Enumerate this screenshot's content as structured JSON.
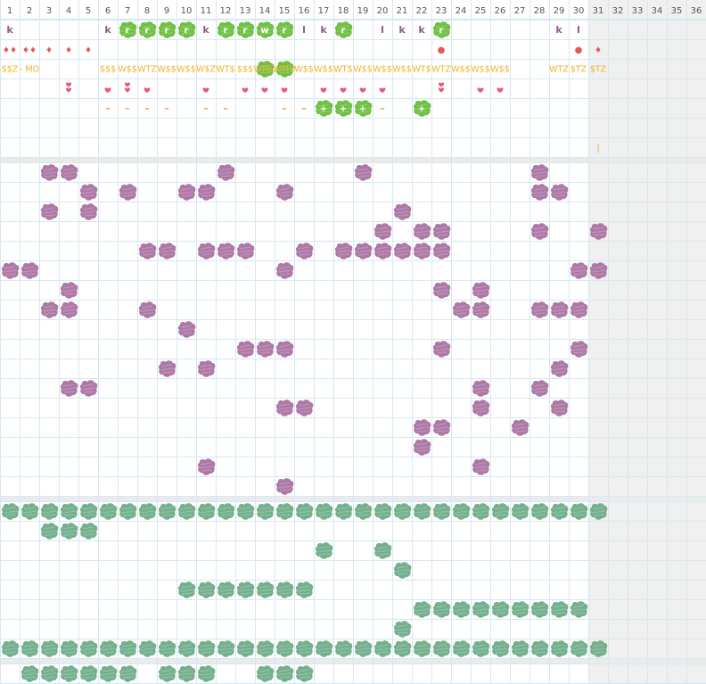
{
  "columns": [
    "1",
    "2",
    "3",
    "4",
    "5",
    "6",
    "7",
    "8",
    "9",
    "10",
    "11",
    "12",
    "13",
    "14",
    "15",
    "16",
    "17",
    "18",
    "19",
    "20",
    "21",
    "22",
    "23",
    "24",
    "25",
    "26",
    "27",
    "28",
    "29",
    "30",
    "31",
    "32",
    "33",
    "34",
    "35",
    "36"
  ],
  "colors": {
    "purple_blob": "#ae78a6",
    "green_blob": "#6fc043",
    "teal_blob": "#74b08d",
    "money": "#f0b429",
    "heart": "#e65a78",
    "drop": "#e35a5a",
    "dash": "#f2994a",
    "letter_k": "#8e5a8c",
    "grid_line": "#d6e8f2",
    "shade": "#f0f0f0"
  },
  "icons": [
    "drop-icon",
    "heart-icon",
    "plus-icon",
    "blob-icon"
  ],
  "row_letters": [
    {
      "col": 1,
      "t": "k",
      "s": 0
    },
    {
      "col": 6,
      "t": "k",
      "s": 0
    },
    {
      "col": 7,
      "t": "r",
      "s": 1
    },
    {
      "col": 8,
      "t": "r",
      "s": 1
    },
    {
      "col": 9,
      "t": "r",
      "s": 1
    },
    {
      "col": 10,
      "t": "r",
      "s": 1
    },
    {
      "col": 11,
      "t": "k",
      "s": 0
    },
    {
      "col": 12,
      "t": "r",
      "s": 1
    },
    {
      "col": 13,
      "t": "r",
      "s": 1
    },
    {
      "col": 14,
      "t": "w",
      "s": 1
    },
    {
      "col": 15,
      "t": "r",
      "s": 1
    },
    {
      "col": 16,
      "t": "l",
      "s": 0
    },
    {
      "col": 17,
      "t": "k",
      "s": 0
    },
    {
      "col": 18,
      "t": "r",
      "s": 1
    },
    {
      "col": 20,
      "t": "l",
      "s": 0
    },
    {
      "col": 21,
      "t": "k",
      "s": 0
    },
    {
      "col": 22,
      "t": "k",
      "s": 0
    },
    {
      "col": 23,
      "t": "r",
      "s": 1
    },
    {
      "col": 29,
      "t": "k",
      "s": 0
    },
    {
      "col": 30,
      "t": "l",
      "s": 0
    }
  ],
  "row_drops": [
    {
      "col": 1,
      "t": "♦♦",
      "k": "d"
    },
    {
      "col": 2,
      "t": "♦♦",
      "k": "d"
    },
    {
      "col": 3,
      "t": "♦",
      "k": "d"
    },
    {
      "col": 4,
      "t": "♦",
      "k": "d"
    },
    {
      "col": 5,
      "t": "♦",
      "k": "d"
    },
    {
      "col": 23,
      "t": "●",
      "k": "c"
    },
    {
      "col": 30,
      "t": "●",
      "k": "c"
    },
    {
      "col": 31,
      "t": "♦",
      "k": "d"
    }
  ],
  "row_money": [
    {
      "col": 1,
      "t": "$$Z",
      "b": 0
    },
    {
      "col": 2,
      "t": "- MO",
      "b": 0
    },
    {
      "col": 6,
      "t": "$$$",
      "b": 0
    },
    {
      "col": 7,
      "t": "W$$",
      "b": 0
    },
    {
      "col": 8,
      "t": "WTZ",
      "b": 0
    },
    {
      "col": 9,
      "t": "W$$",
      "b": 0
    },
    {
      "col": 10,
      "t": "W$$",
      "b": 0
    },
    {
      "col": 11,
      "t": "W$Z",
      "b": 0
    },
    {
      "col": 12,
      "t": "WT$",
      "b": 0
    },
    {
      "col": 13,
      "t": "$$$",
      "b": 0
    },
    {
      "col": 14,
      "t": "WMO",
      "b": 1
    },
    {
      "col": 15,
      "t": "WMO",
      "b": 1
    },
    {
      "col": 16,
      "t": "W$$",
      "b": 0
    },
    {
      "col": 17,
      "t": "W$$",
      "b": 0
    },
    {
      "col": 18,
      "t": "WT$",
      "b": 0
    },
    {
      "col": 19,
      "t": "W$$",
      "b": 0
    },
    {
      "col": 20,
      "t": "W$$",
      "b": 0
    },
    {
      "col": 21,
      "t": "W$$",
      "b": 0
    },
    {
      "col": 22,
      "t": "WT$",
      "b": 0
    },
    {
      "col": 23,
      "t": "WTZ",
      "b": 0
    },
    {
      "col": 24,
      "t": "W$$",
      "b": 0
    },
    {
      "col": 25,
      "t": "W$$",
      "b": 0
    },
    {
      "col": 26,
      "t": "W$$",
      "b": 0
    },
    {
      "col": 29,
      "t": "WTZ",
      "b": 0
    },
    {
      "col": 30,
      "t": "$TZ",
      "b": 0
    },
    {
      "col": 31,
      "t": "$TZ",
      "b": 0
    }
  ],
  "row_hearts": [
    {
      "col": 4,
      "n": 2
    },
    {
      "col": 6,
      "n": 1
    },
    {
      "col": 7,
      "n": 2
    },
    {
      "col": 8,
      "n": 1
    },
    {
      "col": 11,
      "n": 1
    },
    {
      "col": 13,
      "n": 1
    },
    {
      "col": 14,
      "n": 1
    },
    {
      "col": 15,
      "n": 1
    },
    {
      "col": 17,
      "n": 1
    },
    {
      "col": 18,
      "n": 1
    },
    {
      "col": 19,
      "n": 1
    },
    {
      "col": 20,
      "n": 1
    },
    {
      "col": 23,
      "n": 2
    },
    {
      "col": 25,
      "n": 1
    },
    {
      "col": 26,
      "n": 1
    }
  ],
  "row_dashes": [
    {
      "col": 6,
      "t": "–",
      "p": 0
    },
    {
      "col": 7,
      "t": "–",
      "p": 0
    },
    {
      "col": 8,
      "t": "–",
      "p": 0
    },
    {
      "col": 9,
      "t": "–",
      "p": 0
    },
    {
      "col": 11,
      "t": "–",
      "p": 0
    },
    {
      "col": 12,
      "t": "–",
      "p": 0
    },
    {
      "col": 15,
      "t": "–",
      "p": 0
    },
    {
      "col": 16,
      "t": "–",
      "p": 0
    },
    {
      "col": 17,
      "t": "+",
      "p": 1
    },
    {
      "col": 18,
      "t": "+",
      "p": 1
    },
    {
      "col": 19,
      "t": "+",
      "p": 1
    },
    {
      "col": 20,
      "t": "–",
      "p": 0
    },
    {
      "col": 22,
      "t": "+",
      "p": 1
    }
  ],
  "row_marker": [
    {
      "col": 31,
      "t": "|"
    }
  ],
  "purple_rows": [
    [
      3,
      4,
      12,
      19,
      28
    ],
    [
      5,
      7,
      10,
      11,
      15,
      28,
      29
    ],
    [
      3,
      5,
      21
    ],
    [
      20,
      22,
      23,
      28,
      31
    ],
    [
      8,
      9,
      11,
      12,
      13,
      16,
      18,
      19,
      20,
      21,
      22,
      23
    ],
    [
      1,
      2,
      15,
      30,
      31
    ],
    [
      4,
      23,
      25
    ],
    [
      3,
      4,
      8,
      24,
      25,
      28,
      29,
      30
    ],
    [
      10
    ],
    [
      13,
      14,
      15,
      23,
      30
    ],
    [
      9,
      11,
      29
    ],
    [
      4,
      5,
      25,
      28
    ],
    [
      15,
      16,
      25,
      29
    ],
    [
      22,
      23,
      27
    ],
    [
      22
    ],
    [
      11,
      25
    ],
    [
      15
    ]
  ],
  "green_rows": [
    [
      1,
      2,
      3,
      4,
      5,
      6,
      7,
      8,
      9,
      10,
      11,
      12,
      13,
      14,
      15,
      16,
      17,
      18,
      19,
      20,
      21,
      22,
      23,
      24,
      25,
      26,
      27,
      28,
      29,
      30,
      31
    ],
    [
      3,
      4,
      5
    ],
    [
      17,
      20
    ],
    [
      21
    ],
    [
      10,
      11,
      12,
      13,
      14,
      15,
      16
    ],
    [
      22,
      23,
      24,
      25,
      26,
      27,
      28,
      29,
      30
    ],
    [
      21
    ],
    [
      1,
      2,
      3,
      4,
      5,
      6,
      7,
      8,
      9,
      10,
      11,
      12,
      13,
      14,
      15,
      16,
      17,
      18,
      19,
      20,
      21,
      22,
      23,
      24,
      25,
      26,
      27,
      28,
      29,
      30,
      31
    ]
  ],
  "bottom_row": [
    2,
    3,
    4,
    5,
    6,
    7,
    9,
    10,
    11,
    14,
    15,
    16
  ]
}
